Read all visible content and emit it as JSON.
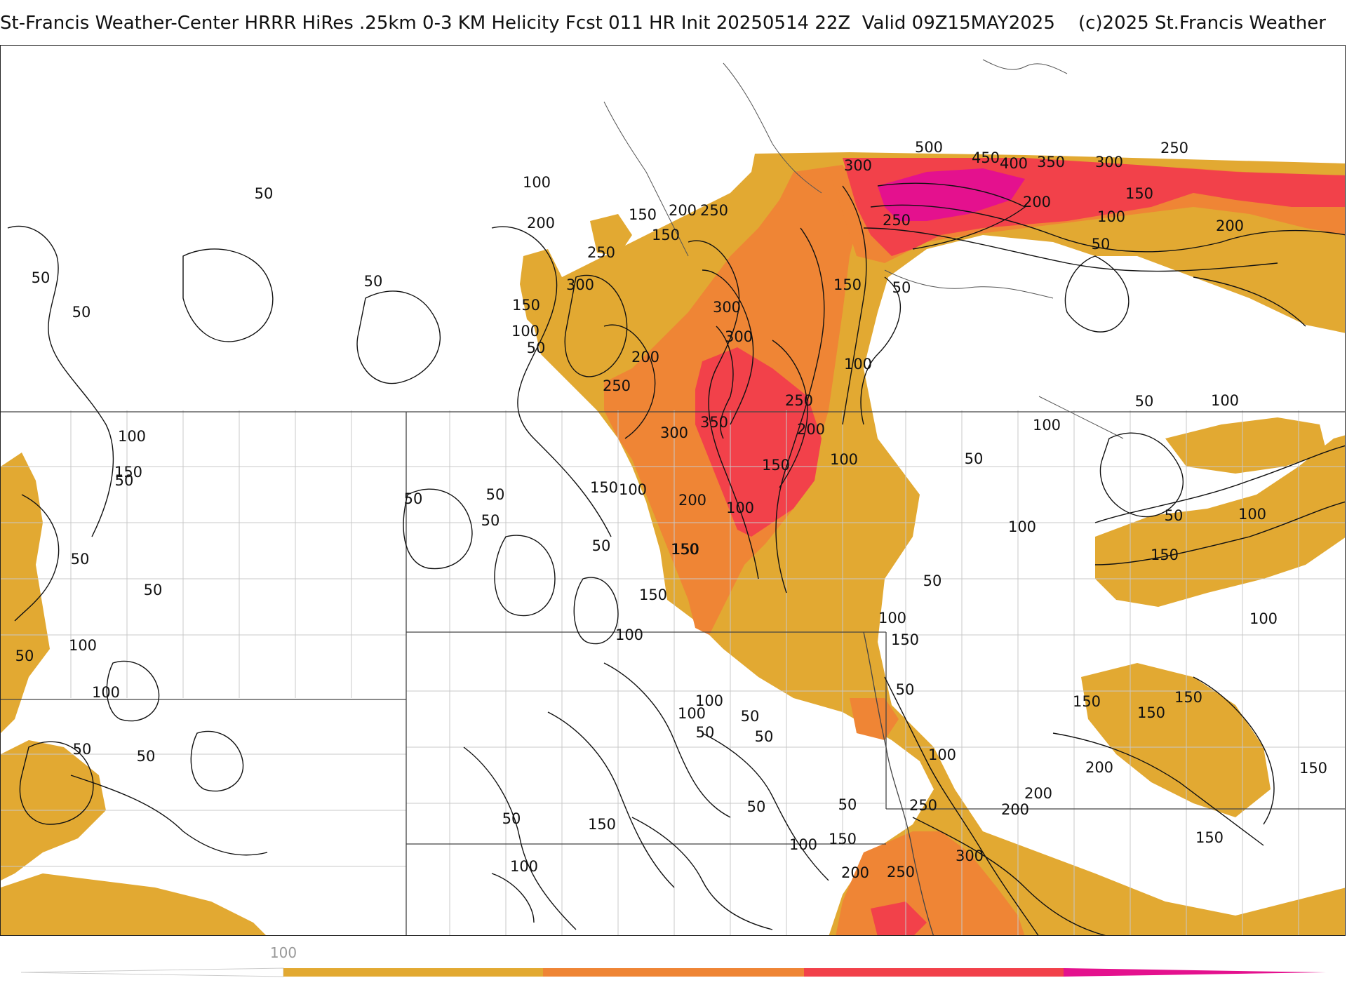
{
  "header": {
    "title": "St-Francis Weather-Center HRRR HiRes .25km 0-3 KM Helicity Fcst 011 HR Init 20250514 22Z  Valid 09Z15MAY2025    (c)2025 St.Francis Weather"
  },
  "colors": {
    "band_100_200": "#e2a932",
    "band_200_300": "#ef8535",
    "band_300_400": "#f2414a",
    "band_400_plus": "#e4118e",
    "contour": "#111111",
    "state_border": "#444444",
    "county_border": "#c8c8c8",
    "background": "#ffffff"
  },
  "colorbar": {
    "tick_label": "100"
  },
  "contour_labels": [
    {
      "t": "50"
    },
    {
      "t": "100"
    },
    {
      "t": "150"
    },
    {
      "t": "200"
    },
    {
      "t": "250"
    },
    {
      "t": "300"
    },
    {
      "t": "350"
    },
    {
      "t": "400"
    },
    {
      "t": "450"
    },
    {
      "t": "500"
    }
  ]
}
